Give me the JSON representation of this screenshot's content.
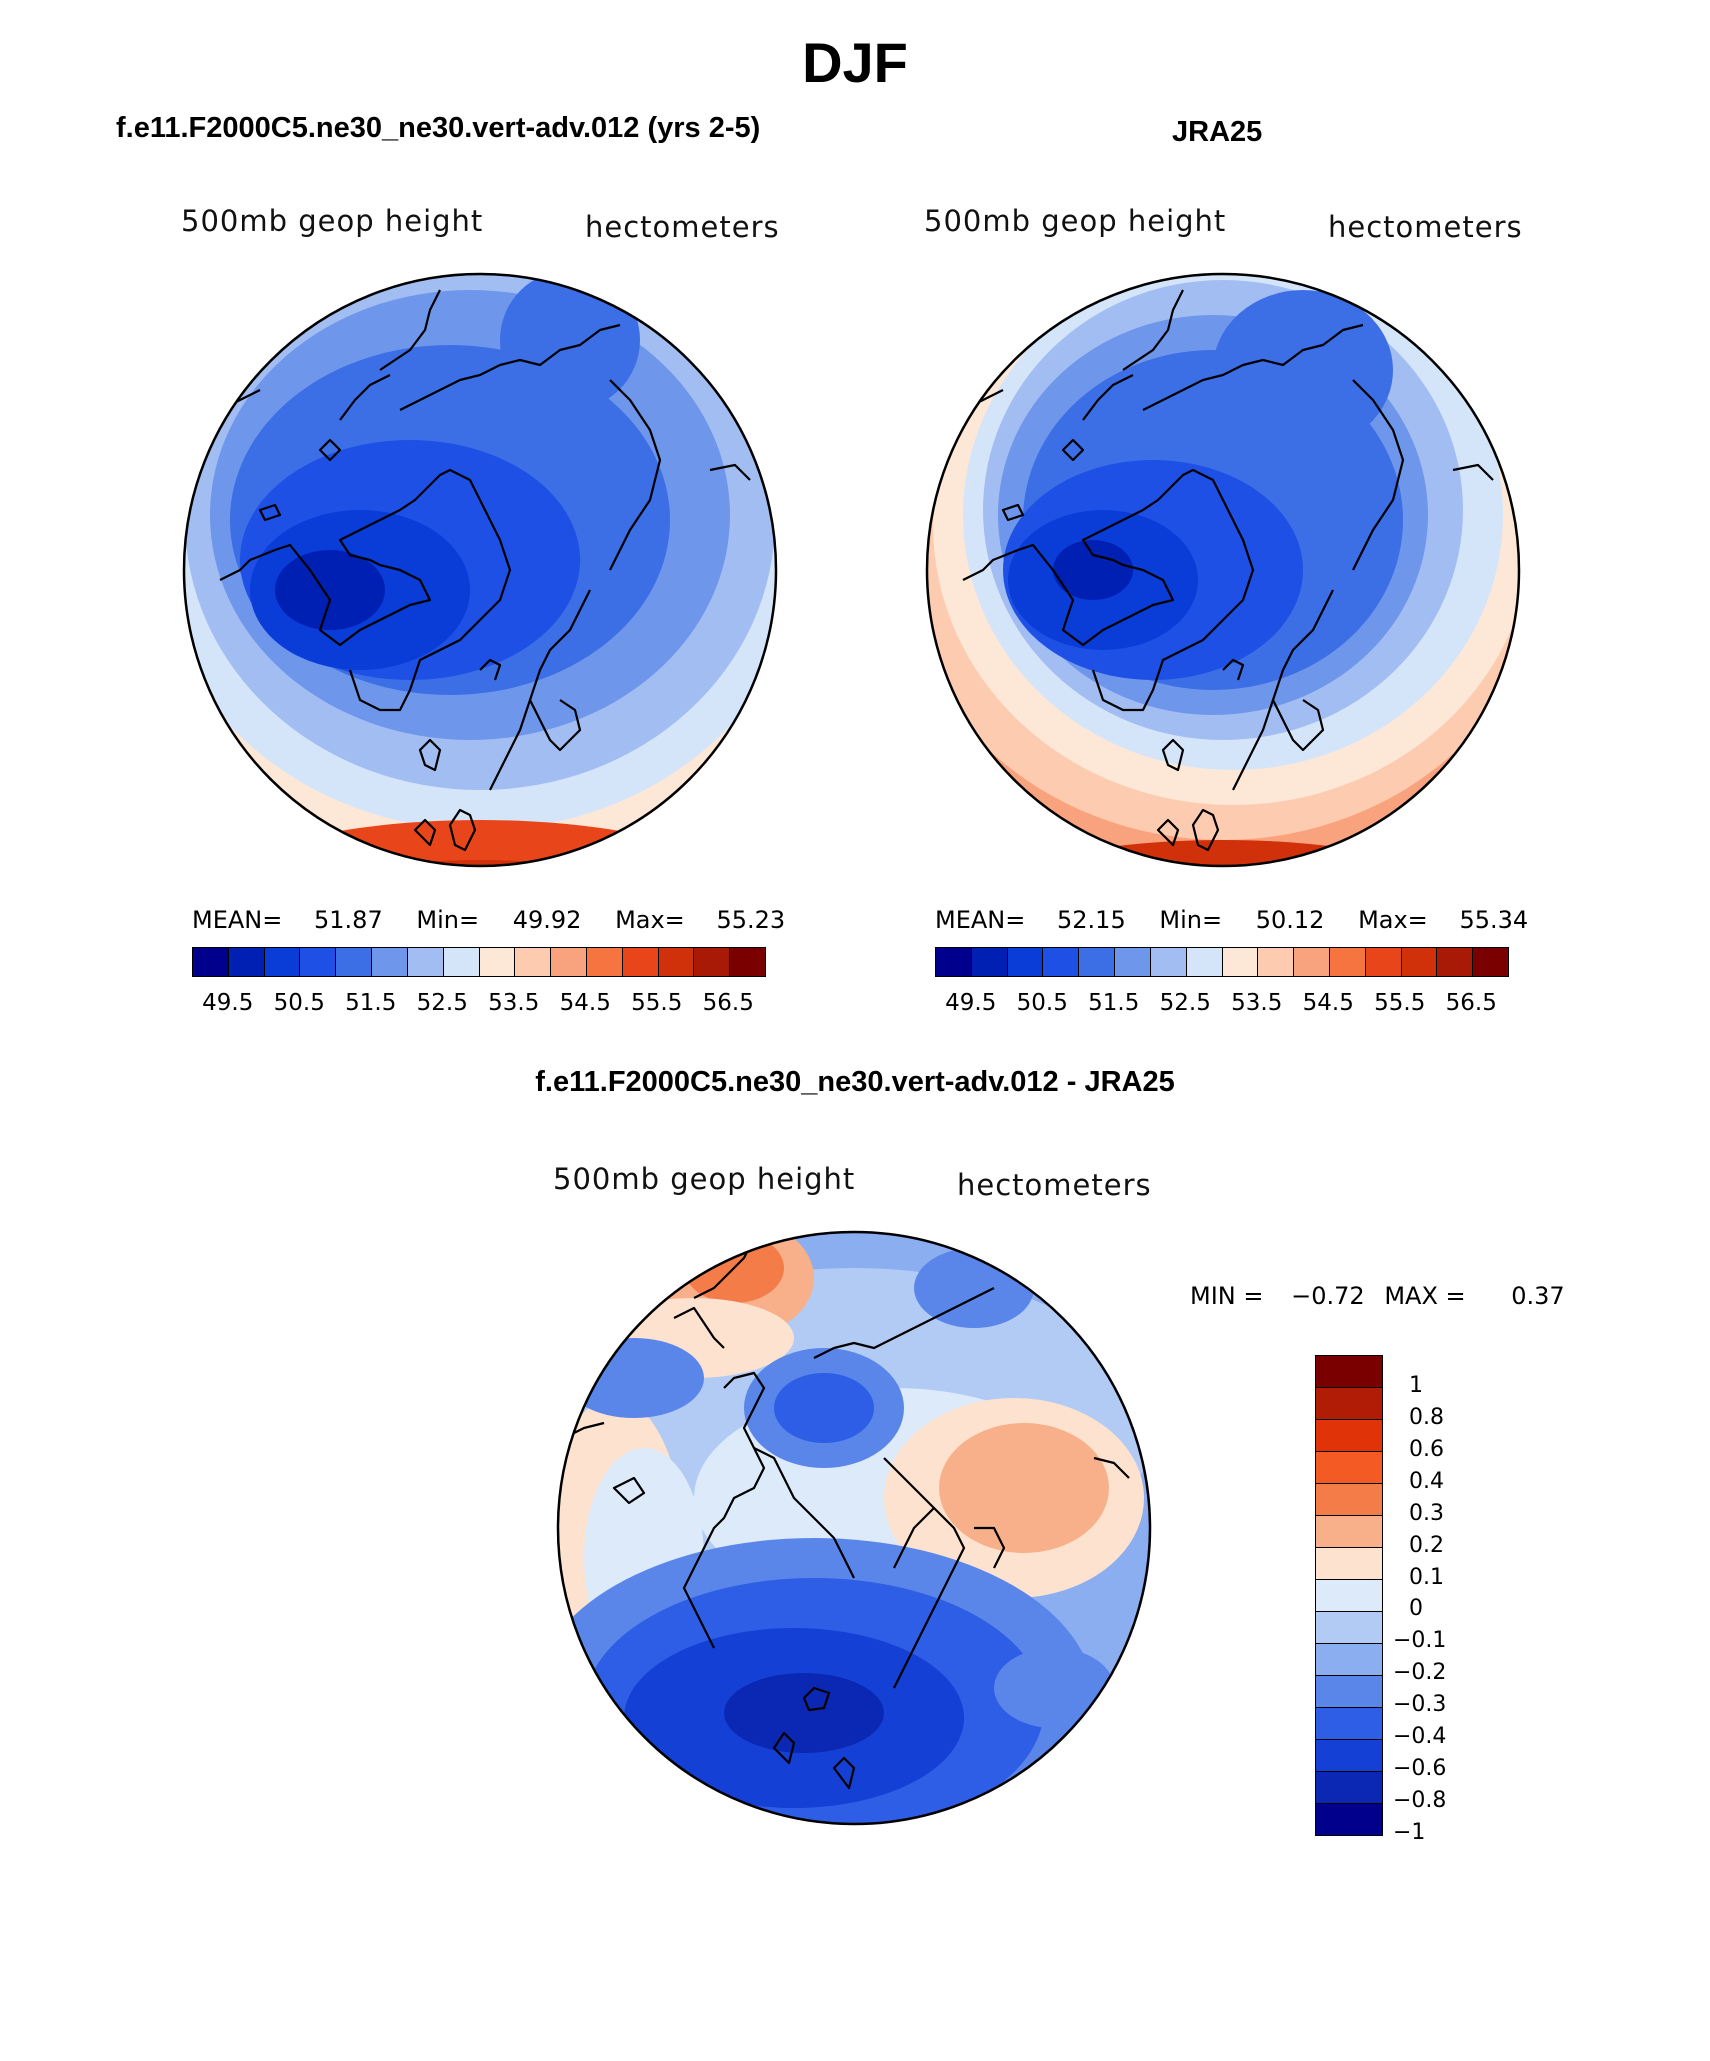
{
  "title": "DJF",
  "panels": [
    {
      "title": "f.e11.F2000C5.ne30_ne30.vert-adv.012 (yrs 2-5)",
      "label_left": "500mb geop height",
      "label_right": "hectometers",
      "mean_label": "MEAN=",
      "mean": "51.87",
      "min_label": "Min=",
      "min": "49.92",
      "max_label": "Max=",
      "max": "55.23"
    },
    {
      "title": "JRA25",
      "label_left": "500mb geop height",
      "label_right": "hectometers",
      "mean_label": "MEAN=",
      "mean": "52.15",
      "min_label": "Min=",
      "min": "50.12",
      "max_label": "Max=",
      "max": "55.34"
    }
  ],
  "diff_panel": {
    "title": "f.e11.F2000C5.ne30_ne30.vert-adv.012 - JRA25",
    "label_left": "500mb geop height",
    "label_right": "hectometers",
    "min_label": "MIN =",
    "min": "−0.72",
    "max_label": "MAX =",
    "max": "0.37"
  },
  "colorbar_abs": {
    "colors": [
      "#00008c",
      "#0020b4",
      "#0a3cd8",
      "#1e50e6",
      "#3c6ee6",
      "#6e96ea",
      "#a2bdf2",
      "#d4e5fa",
      "#fde8d8",
      "#fccbb0",
      "#f9a37e",
      "#f57440",
      "#e8461a",
      "#d0300a",
      "#a81a06",
      "#7a0000"
    ],
    "tick_labels": [
      "49.5",
      "50.5",
      "51.5",
      "52.5",
      "53.5",
      "54.5",
      "55.5",
      "56.5"
    ]
  },
  "colorbar_diff": {
    "colors": [
      "#7a0000",
      "#b01c06",
      "#e03408",
      "#f45a24",
      "#f47c48",
      "#f8b08a",
      "#fde2d0",
      "#dceafa",
      "#b2cbf4",
      "#8aaef0",
      "#5a86ea",
      "#2e5ee6",
      "#1440d6",
      "#0a28b4",
      "#00008c"
    ],
    "tick_labels": [
      "1",
      "0.8",
      "0.6",
      "0.4",
      "0.3",
      "0.2",
      "0.1",
      "0",
      "−0.1",
      "−0.2",
      "−0.3",
      "−0.4",
      "−0.6",
      "−0.8",
      "−1"
    ]
  }
}
